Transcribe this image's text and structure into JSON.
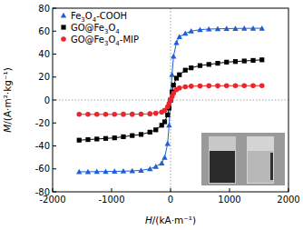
{
  "chart_data": {
    "type": "line",
    "x_label": "H/(kA·m⁻¹)",
    "y_label": "M/(A·m²·kg⁻¹)",
    "x": [
      -1550,
      -1400,
      -1250,
      -1100,
      -950,
      -800,
      -650,
      -500,
      -350,
      -250,
      -150,
      -100,
      -50,
      -25,
      0,
      25,
      50,
      100,
      150,
      250,
      350,
      500,
      650,
      800,
      950,
      1100,
      1250,
      1400,
      1550
    ],
    "series": [
      {
        "name": "Fe3O4-COOH",
        "color": "#1f5fd6",
        "marker": "triangle",
        "values": [
          -62.5,
          -62.5,
          -62.4,
          -62.3,
          -62.2,
          -62,
          -61.8,
          -61.3,
          -60,
          -58,
          -55,
          -50,
          -38,
          -22,
          0,
          22,
          38,
          50,
          55,
          58,
          60,
          61.3,
          61.8,
          62,
          62.2,
          62.3,
          62.4,
          62.5,
          62.5
        ]
      },
      {
        "name": "GO@Fe3O4",
        "color": "#000000",
        "marker": "square",
        "values": [
          -35,
          -34.5,
          -34,
          -33.5,
          -33,
          -32,
          -31,
          -30,
          -28,
          -26,
          -22,
          -19,
          -13,
          -7,
          0,
          7,
          13,
          19,
          22,
          26,
          28,
          30,
          31,
          32,
          33,
          33.5,
          34,
          34.5,
          35
        ]
      },
      {
        "name": "GO@Fe3O4-MIP",
        "color": "#e8262b",
        "marker": "circle",
        "values": [
          -12.5,
          -12.5,
          -12.5,
          -12.5,
          -12.5,
          -12.4,
          -12.4,
          -12.3,
          -12,
          -11.5,
          -10.5,
          -9,
          -6,
          -3,
          0,
          3,
          6,
          9,
          10.5,
          11.5,
          12,
          12.3,
          12.4,
          12.4,
          12.5,
          12.5,
          12.5,
          12.5,
          12.5
        ]
      }
    ],
    "xlim": [
      -2000,
      2000
    ],
    "xticks": [
      -2000,
      -1000,
      0,
      1000,
      2000
    ],
    "ylim": [
      -80,
      80
    ],
    "yticks": [
      -80,
      -60,
      -40,
      -20,
      0,
      20,
      40,
      60,
      80
    ],
    "legend": "upper left"
  }
}
